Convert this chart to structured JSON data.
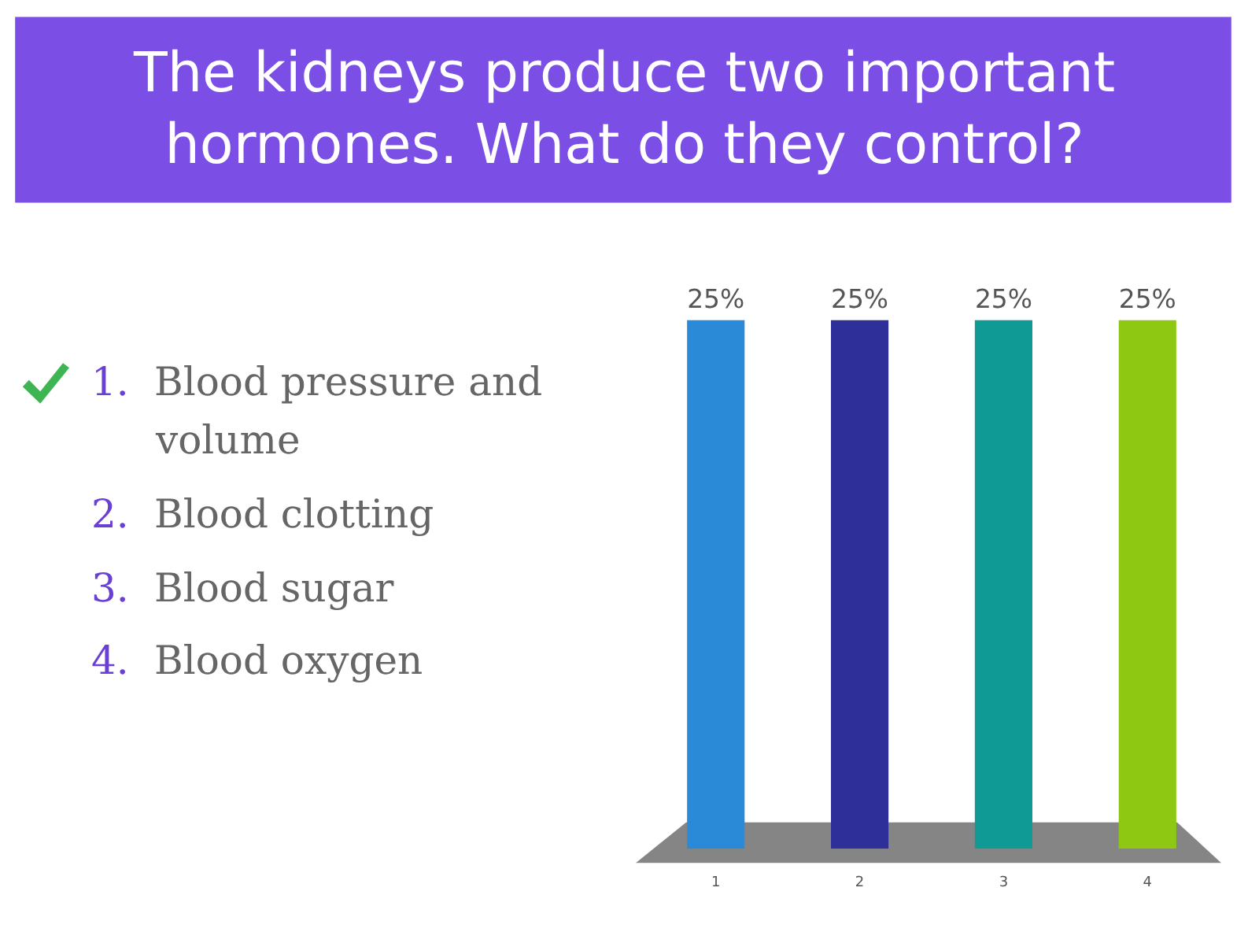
{
  "chart_data": {
    "type": "bar",
    "title": "The kidneys produce two important hormones. What do they control?",
    "categories": [
      "1",
      "2",
      "3",
      "4"
    ],
    "values": [
      25,
      25,
      25,
      25
    ],
    "colors": [
      "#2a8ad8",
      "#2e2f98",
      "#0f9a96",
      "#8fc812"
    ],
    "value_labels": [
      "25%",
      "25%",
      "25%",
      "25%"
    ],
    "annotations": [
      "1. Blood pressure and volume",
      "2. Blood clotting",
      "3. Blood sugar",
      "4. Blood oxygen"
    ],
    "legend": false
  }
}
